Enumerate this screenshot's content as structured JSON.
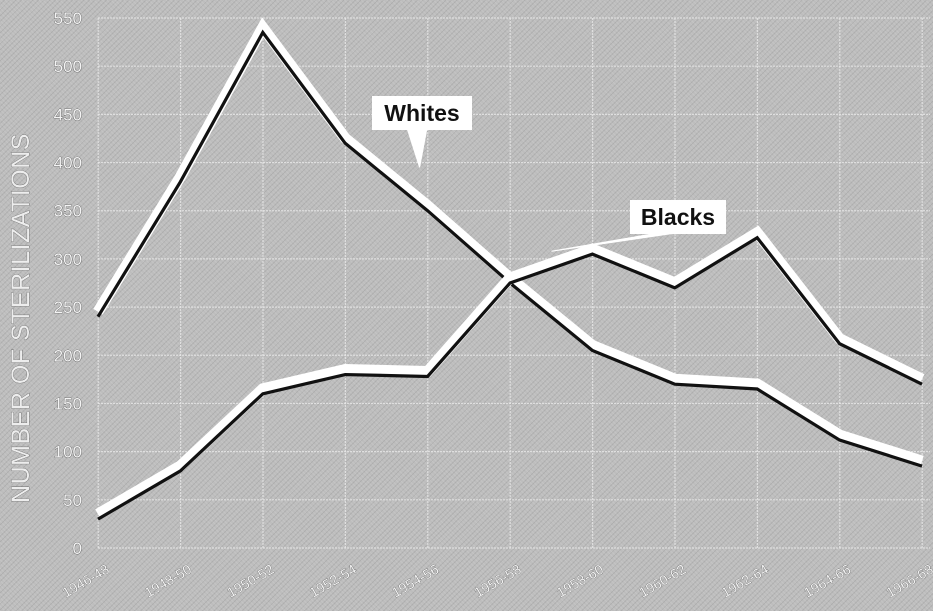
{
  "chart_data": {
    "type": "line",
    "title": "",
    "xlabel": "",
    "ylabel": "NUMBER OF STERILIZATIONS",
    "categories": [
      "1946-48",
      "1948-50",
      "1950-52",
      "1952-54",
      "1954-56",
      "1956-58",
      "1958-60",
      "1960-62",
      "1962-64",
      "1964-66",
      "1966-68"
    ],
    "ylim": [
      0,
      550
    ],
    "yticks": [
      0,
      50,
      100,
      150,
      200,
      250,
      300,
      350,
      400,
      450,
      500,
      550
    ],
    "grid": true,
    "legend": "none",
    "series": [
      {
        "name": "Whites",
        "values": [
          240,
          380,
          535,
          420,
          350,
          275,
          205,
          170,
          165,
          112,
          85
        ]
      },
      {
        "name": "Blacks",
        "values": [
          30,
          80,
          160,
          180,
          178,
          275,
          305,
          270,
          322,
          212,
          170
        ]
      }
    ],
    "colors": {
      "line": "#111111",
      "halo": "#ffffff",
      "grid": "#e8e8e8"
    }
  }
}
